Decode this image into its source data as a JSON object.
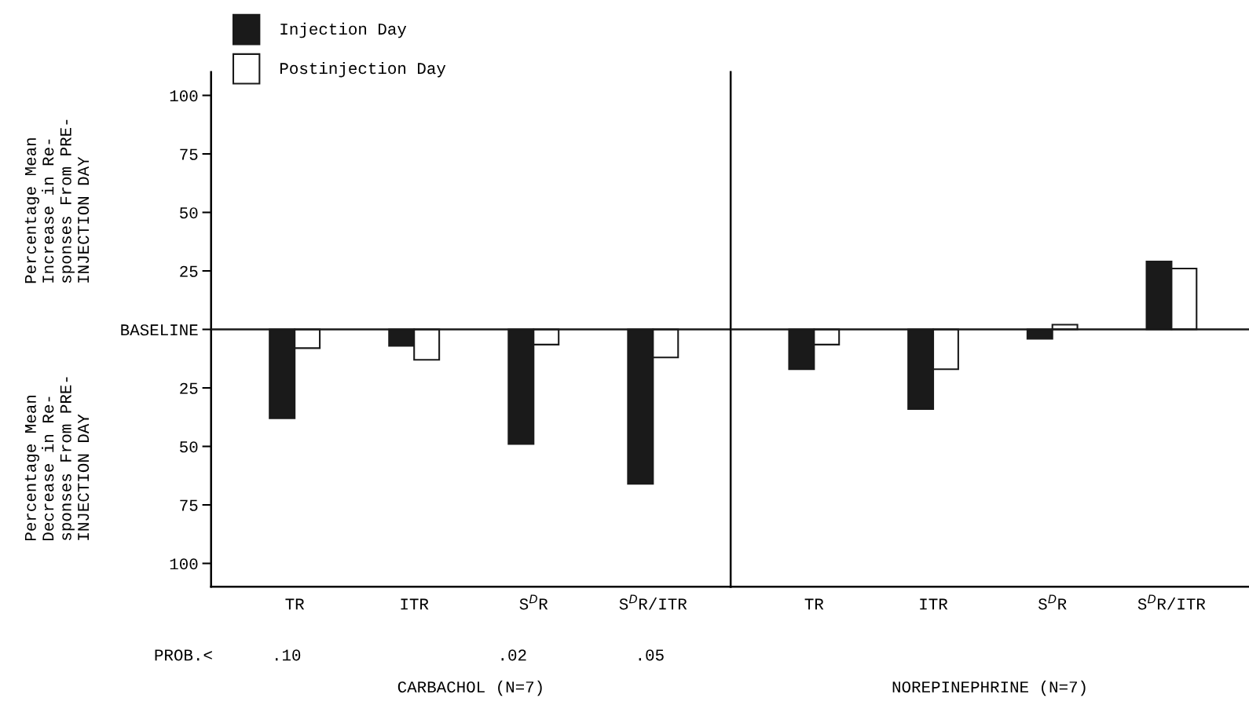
{
  "chart_data": [
    {
      "type": "bar",
      "xlabel": "CARBACHOL (N=7)",
      "ylabel": "Percentage Mean\nIncrease in Re-\nsponses From PRE-\nINJECTION DAY",
      "categories": [
        "TR",
        "ITR",
        "S$^{D}$R",
        "S$^{D}$R/ITR"
      ],
      "series": [
        {
          "name": "Injection Day",
          "color": "#1a1a1a",
          "values": [
            -38,
            -7,
            -49,
            -66
          ]
        },
        {
          "name": "Postinjection Day",
          "color": "#ffffff",
          "values": [
            -8,
            -13,
            -6.5,
            -12
          ]
        }
      ],
      "ylim": [
        -110,
        110
      ],
      "yticks": [
        {
          "value": -100,
          "label": "100"
        },
        {
          "value": -75,
          "label": "75"
        },
        {
          "value": -50,
          "label": "50"
        },
        {
          "value": -25,
          "label": "25"
        },
        {
          "value": 0,
          "label": "BASELINE"
        },
        25,
        50,
        75,
        100
      ],
      "ref_lines": [
        {
          "axis": "y",
          "value": 0,
          "color": "#1a1a1a"
        }
      ],
      "annotations": [
        "Percentage Mean\nDecrease in Re-\nsponses From PRE-\nINJECTION DAY",
        "PROB.<      .10                    .02           .05"
      ],
      "legend": "top left",
      "grid": false
    },
    {
      "type": "bar",
      "xlabel": "NOREPINEPHRINE (N=7)",
      "categories": [
        "TR",
        "ITR",
        "S$^{D}$R",
        "S$^{D}$R/ITR"
      ],
      "series": [
        {
          "color": "#1a1a1a",
          "values": [
            -17,
            -34,
            -4,
            29
          ]
        },
        {
          "color": "#ffffff",
          "values": [
            -6.5,
            -17,
            2,
            26
          ]
        }
      ],
      "ylim": [
        -110,
        110
      ],
      "ref_lines": [
        {
          "axis": "y",
          "value": 0,
          "color": "#1a1a1a"
        }
      ],
      "tick_labels": "x",
      "grid": false
    }
  ]
}
